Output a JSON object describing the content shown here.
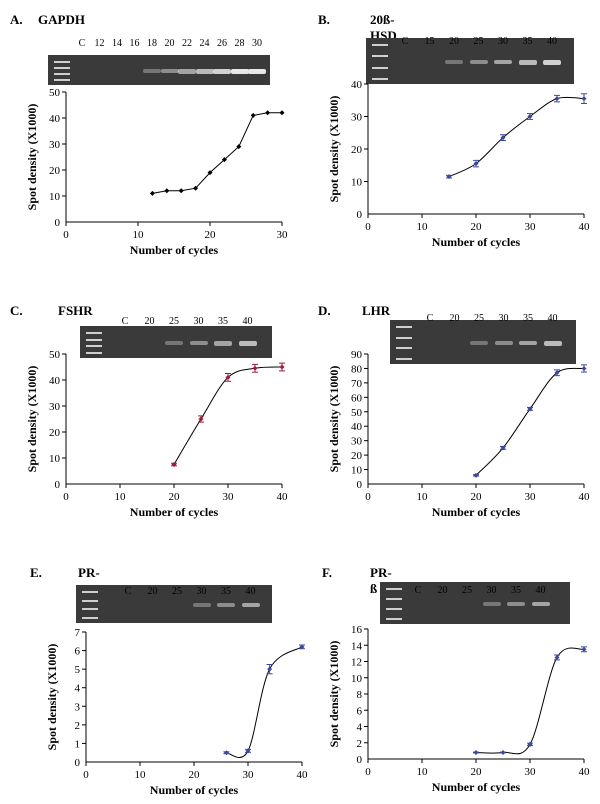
{
  "panels": [
    {
      "letter": "A.",
      "gene": "GAPDH",
      "lanes": [
        "C",
        "12",
        "14",
        "16",
        "18",
        "20",
        "22",
        "24",
        "26",
        "28",
        "30"
      ],
      "chart_data": {
        "type": "line",
        "xlabel": "Number of cycles",
        "ylabel": "Spot density (X1000)",
        "xlim": [
          0,
          30
        ],
        "ylim": [
          0,
          50
        ],
        "xticks": [
          0,
          10,
          20,
          30
        ],
        "yticks": [
          10,
          20,
          30,
          40,
          50
        ],
        "x": [
          12,
          14,
          16,
          18,
          20,
          22,
          24,
          26,
          28,
          30
        ],
        "y": [
          11,
          12,
          12,
          13,
          19,
          24,
          29,
          41,
          42,
          42
        ],
        "errors": null,
        "smooth": false,
        "marker_color": "#000000"
      }
    },
    {
      "letter": "B.",
      "gene": "20ß-HSD",
      "lanes": [
        "C",
        "15",
        "20",
        "25",
        "30",
        "35",
        "40"
      ],
      "chart_data": {
        "type": "line",
        "xlabel": "Number of cycles",
        "ylabel": "Spot density (X1000)",
        "xlim": [
          0,
          40
        ],
        "ylim": [
          0,
          40
        ],
        "xticks": [
          0,
          10,
          20,
          30,
          40
        ],
        "yticks": [
          10,
          20,
          30,
          40
        ],
        "x": [
          15,
          20,
          25,
          30,
          35,
          40
        ],
        "y": [
          11.5,
          15.5,
          23.5,
          30,
          35.5,
          35.5
        ],
        "errors": [
          0.4,
          1.0,
          0.9,
          0.9,
          1.0,
          1.5
        ],
        "smooth": true,
        "marker_color": "#3b4aa0"
      }
    },
    {
      "letter": "C.",
      "gene": "FSHR",
      "lanes": [
        "C",
        "20",
        "25",
        "30",
        "35",
        "40"
      ],
      "chart_data": {
        "type": "line",
        "xlabel": "Number of cycles",
        "ylabel": "Spot density (X1000)",
        "xlim": [
          0,
          40
        ],
        "ylim": [
          0,
          50
        ],
        "xticks": [
          0,
          10,
          20,
          30,
          40
        ],
        "yticks": [
          10,
          20,
          30,
          40,
          50
        ],
        "x": [
          20,
          25,
          30,
          35,
          40
        ],
        "y": [
          7.5,
          25,
          41,
          44.5,
          45
        ],
        "errors": [
          0.5,
          1.2,
          1.5,
          1.5,
          1.5
        ],
        "smooth": true,
        "marker_color": "#a01c3a"
      }
    },
    {
      "letter": "D.",
      "gene": "LHR",
      "lanes": [
        "C",
        "20",
        "25",
        "30",
        "35",
        "40"
      ],
      "chart_data": {
        "type": "line",
        "xlabel": "Number of cycles",
        "ylabel": "Spot density (X1000)",
        "xlim": [
          0,
          40
        ],
        "ylim": [
          0,
          90
        ],
        "xticks": [
          0,
          10,
          20,
          30,
          40
        ],
        "yticks": [
          10,
          20,
          30,
          40,
          50,
          60,
          70,
          80,
          90
        ],
        "x": [
          20,
          25,
          30,
          35,
          40
        ],
        "y": [
          6,
          25,
          52,
          77,
          80
        ],
        "errors": [
          0.5,
          1,
          1,
          2,
          2.5
        ],
        "smooth": true,
        "marker_color": "#3b4aa0"
      }
    },
    {
      "letter": "E.",
      "gene": "PR-α",
      "lanes": [
        "C",
        "20",
        "25",
        "30",
        "35",
        "40"
      ],
      "chart_data": {
        "type": "line",
        "xlabel": "Number of cycles",
        "ylabel": "Spot density (X1000)",
        "xlim": [
          0,
          40
        ],
        "ylim": [
          0,
          7
        ],
        "xticks": [
          0,
          10,
          20,
          30,
          40
        ],
        "yticks": [
          1,
          2,
          3,
          4,
          5,
          6,
          7
        ],
        "x": [
          26,
          30,
          34,
          40
        ],
        "y": [
          0.5,
          0.6,
          5,
          6.2
        ],
        "errors": [
          0.05,
          0.08,
          0.25,
          0.1
        ],
        "smooth": true,
        "marker_color": "#3b4aa0"
      }
    },
    {
      "letter": "F.",
      "gene": "PR-ß",
      "lanes": [
        "C",
        "20",
        "25",
        "30",
        "35",
        "40"
      ],
      "chart_data": {
        "type": "line",
        "xlabel": "Number of cycles",
        "ylabel": "Spot density (X1000)",
        "xlim": [
          0,
          40
        ],
        "ylim": [
          0,
          16
        ],
        "xticks": [
          0,
          10,
          20,
          30,
          40
        ],
        "yticks": [
          2,
          4,
          6,
          8,
          10,
          12,
          14,
          16
        ],
        "x": [
          20,
          25,
          30,
          35,
          40
        ],
        "y": [
          0.8,
          0.8,
          1.8,
          12.5,
          13.5
        ],
        "errors": [
          0.05,
          0.05,
          0.15,
          0.3,
          0.3
        ],
        "smooth": true,
        "marker_color": "#3b4aa0"
      }
    }
  ]
}
